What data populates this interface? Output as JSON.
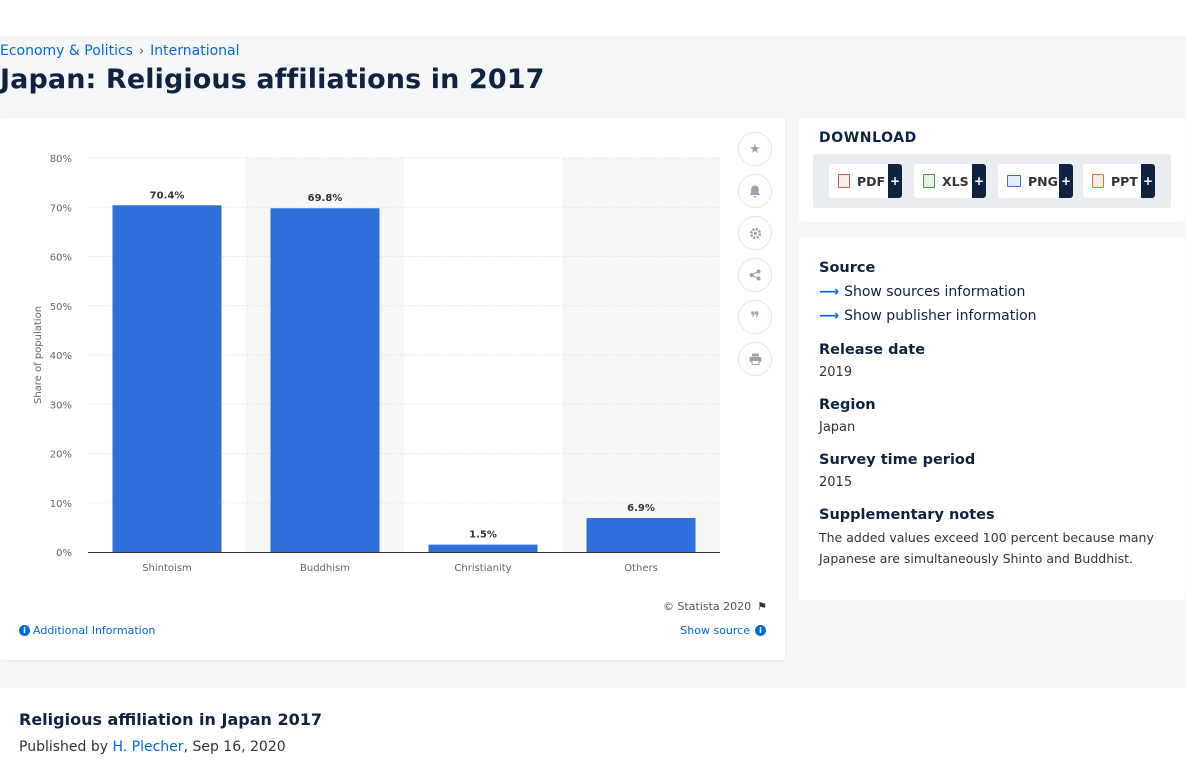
{
  "breadcrumb": {
    "items": [
      "Economy & Politics",
      "International"
    ],
    "separator": "›"
  },
  "page": {
    "title": "Japan: Religious affiliations in 2017"
  },
  "chart_data": {
    "type": "bar",
    "categories": [
      "Shintoism",
      "Buddhism",
      "Christianity",
      "Others"
    ],
    "values": [
      70.4,
      69.8,
      1.5,
      6.9
    ],
    "value_labels": [
      "70.4%",
      "69.8%",
      "1.5%",
      "6.9%"
    ],
    "title": "",
    "xlabel": "",
    "ylabel": "Share of population",
    "ylim": [
      0,
      80
    ],
    "yticks": [
      0,
      10,
      20,
      30,
      40,
      50,
      60,
      70,
      80
    ],
    "ytick_labels": [
      "0%",
      "10%",
      "20%",
      "30%",
      "40%",
      "50%",
      "60%",
      "70%",
      "80%"
    ],
    "grid": true,
    "bar_color": "#2f6fdc"
  },
  "chart_footer": {
    "copyright": "© Statista 2020",
    "additional_info": "Additional Information",
    "show_source": "Show source"
  },
  "toolbar": {
    "icons": [
      "star-icon",
      "bell-icon",
      "gear-icon",
      "share-icon",
      "quote-icon",
      "print-icon"
    ]
  },
  "download": {
    "title": "DOWNLOAD",
    "buttons": [
      {
        "label": "PDF",
        "color": "#d9534f"
      },
      {
        "label": "XLS",
        "color": "#3c9a3c"
      },
      {
        "label": "PNG",
        "color": "#2f6fdc"
      },
      {
        "label": "PPT",
        "color": "#e8742c"
      }
    ],
    "plus": "+"
  },
  "meta": {
    "source_heading": "Source",
    "show_sources": "Show sources information",
    "show_publisher": "Show publisher information",
    "release_heading": "Release date",
    "release_value": "2019",
    "region_heading": "Region",
    "region_value": "Japan",
    "survey_heading": "Survey time period",
    "survey_value": "2015",
    "notes_heading": "Supplementary notes",
    "notes_value": "The added values exceed 100 percent because many Japanese are simultaneously Shinto and Buddhist."
  },
  "bottom": {
    "title": "Religious affiliation in Japan 2017",
    "published_prefix": "Published by",
    "author": "H. Plecher",
    "date": ", Sep 16, 2020"
  }
}
